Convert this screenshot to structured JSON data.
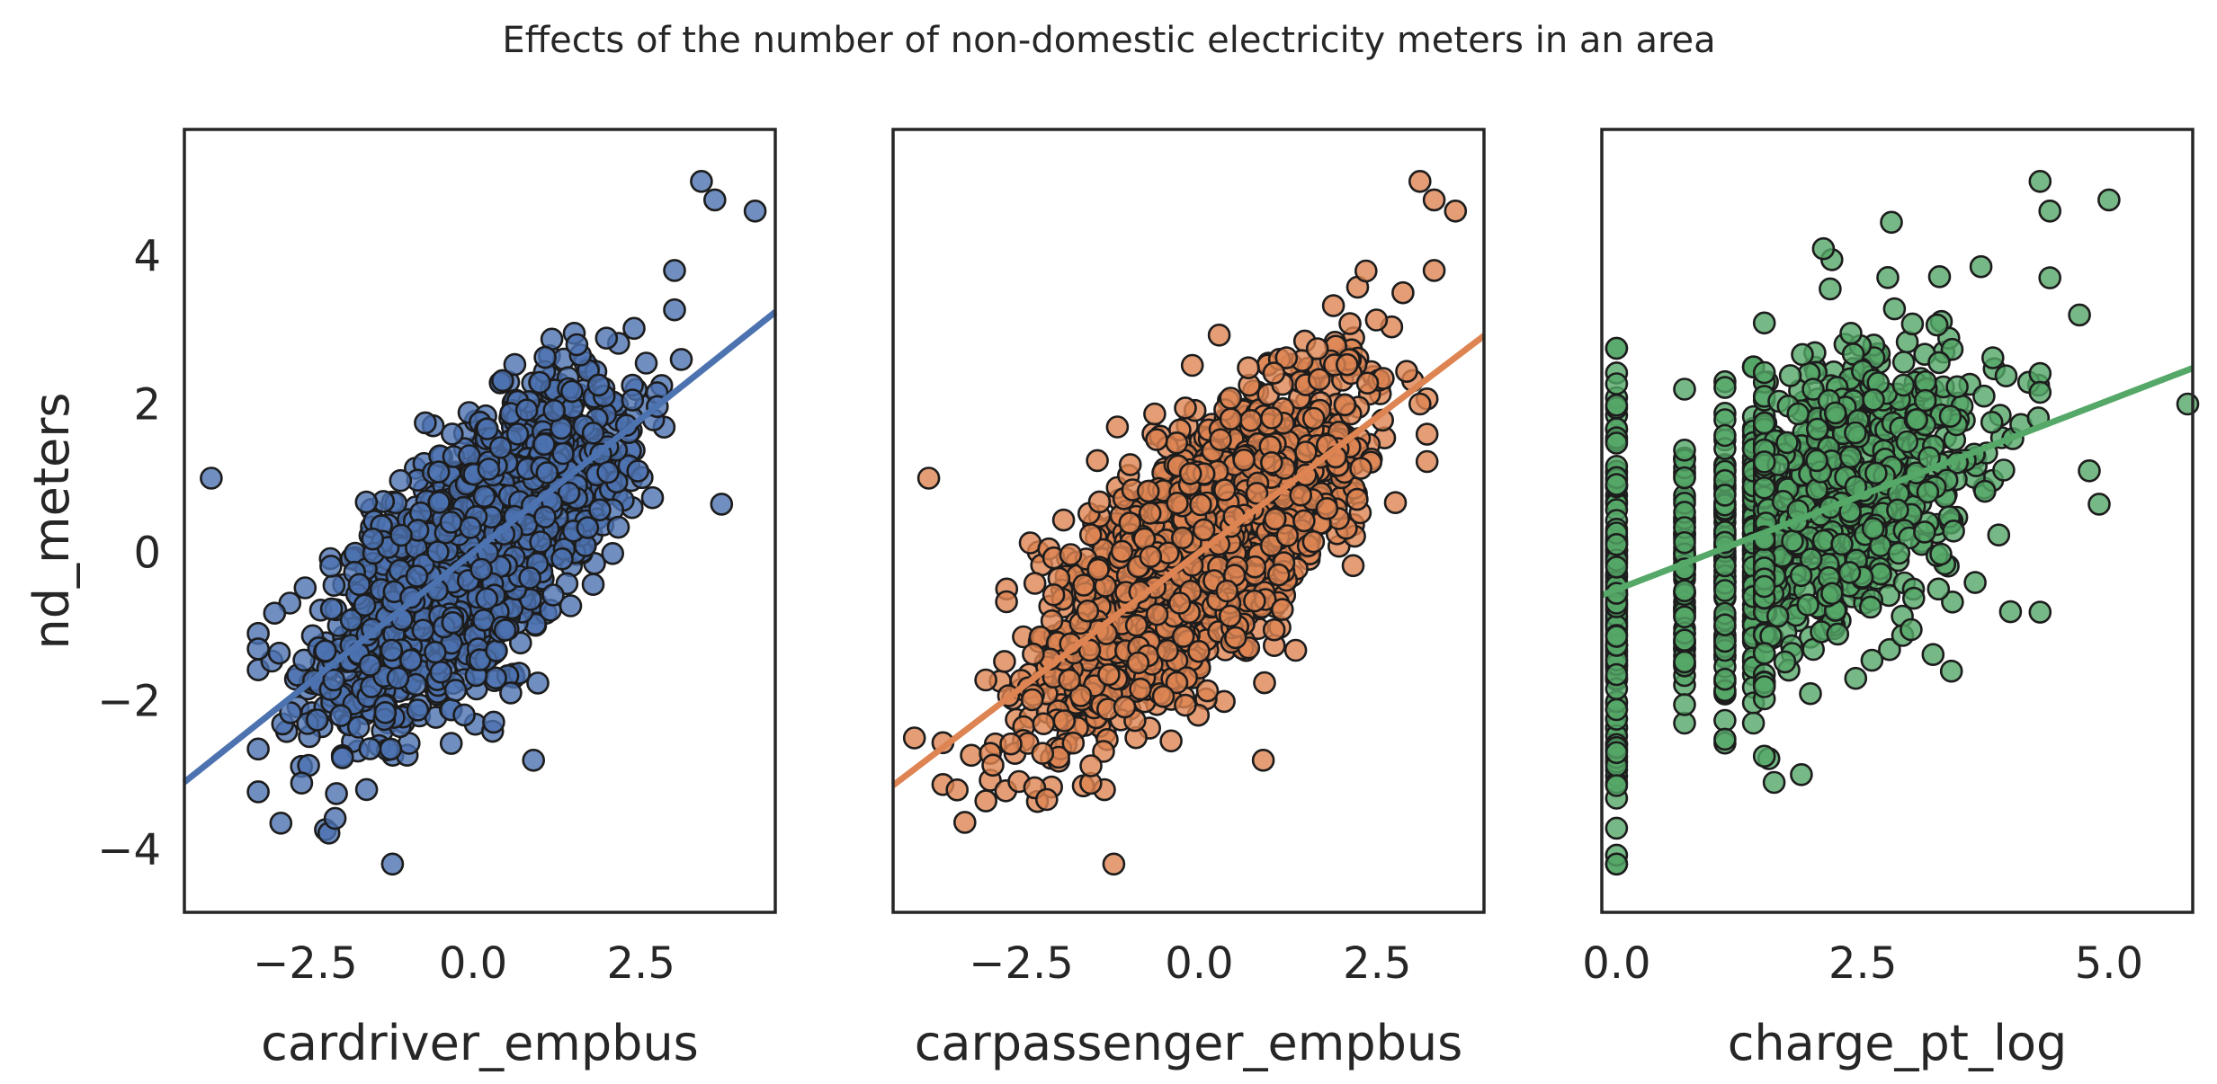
{
  "suptitle": "Effects of the number of non-domestic electricity meters in an area",
  "chart_data": [
    {
      "type": "scatter",
      "xlabel": "cardriver_empbus",
      "ylabel": "nd_meters",
      "xlim": [
        -4.3,
        4.5
      ],
      "ylim": [
        -4.85,
        5.7
      ],
      "xticks": [
        -2.5,
        0.0,
        2.5
      ],
      "xtick_labels": [
        "−2.5",
        "0.0",
        "2.5"
      ],
      "yticks": [
        -4,
        -2,
        0,
        2,
        4
      ],
      "ytick_labels": [
        "−4",
        "−2",
        "0",
        "2",
        "4"
      ],
      "color": "#4c72b0",
      "regression": {
        "slope": 0.72,
        "intercept": 0.0
      },
      "cloud": {
        "x_mean": 0.0,
        "x_sd": 1.1,
        "x_min": -3.2,
        "x_max": 3.0,
        "noise_sd": 0.78,
        "n": 1700
      },
      "outliers": [
        [
          -3.9,
          1.0
        ],
        [
          3.4,
          5.0
        ],
        [
          3.6,
          4.75
        ],
        [
          4.2,
          4.6
        ],
        [
          3.7,
          0.65
        ],
        [
          3.1,
          2.6
        ],
        [
          -1.2,
          -4.2
        ],
        [
          0.9,
          -2.8
        ],
        [
          -3.2,
          -1.3
        ],
        [
          3.0,
          3.8
        ]
      ],
      "grid": false
    },
    {
      "type": "scatter",
      "xlabel": "carpassenger_empbus",
      "ylabel": "",
      "xlim": [
        -4.3,
        4.0
      ],
      "ylim": [
        -4.85,
        5.7
      ],
      "xticks": [
        -2.5,
        0.0,
        2.5
      ],
      "xtick_labels": [
        "−2.5",
        "0.0",
        "2.5"
      ],
      "yticks": [],
      "ytick_labels": [],
      "color": "#dd8452",
      "regression": {
        "slope": 0.73,
        "intercept": 0.0
      },
      "cloud": {
        "x_mean": 0.0,
        "x_sd": 1.1,
        "x_min": -3.6,
        "x_max": 3.2,
        "noise_sd": 0.8,
        "n": 1700
      },
      "outliers": [
        [
          -3.8,
          1.0
        ],
        [
          3.1,
          5.0
        ],
        [
          3.3,
          4.75
        ],
        [
          3.6,
          4.6
        ],
        [
          3.3,
          3.8
        ],
        [
          -4.0,
          -2.5
        ],
        [
          -3.4,
          -3.2
        ],
        [
          -1.2,
          -4.2
        ],
        [
          0.9,
          -2.8
        ],
        [
          3.1,
          2.0
        ]
      ],
      "grid": false
    },
    {
      "type": "scatter",
      "xlabel": "charge_pt_log",
      "ylabel": "",
      "xlim": [
        -0.15,
        5.85
      ],
      "ylim": [
        -4.85,
        5.7
      ],
      "xticks": [
        0.0,
        2.5,
        5.0
      ],
      "xtick_labels": [
        "0.0",
        "2.5",
        "5.0"
      ],
      "yticks": [],
      "ytick_labels": [],
      "color": "#55a868",
      "regression": {
        "slope": 0.51,
        "intercept": -0.5
      },
      "columns": [
        {
          "x": 0.0,
          "ymin": -4.2,
          "ymax": 2.75,
          "n": 140
        },
        {
          "x": 0.69,
          "ymin": -2.5,
          "ymax": 2.2,
          "n": 80
        },
        {
          "x": 1.1,
          "ymin": -2.6,
          "ymax": 2.3,
          "n": 90
        },
        {
          "x": 1.39,
          "ymin": -2.3,
          "ymax": 2.5,
          "n": 90
        }
      ],
      "cloud": {
        "x_mean": 2.3,
        "x_sd": 0.75,
        "x_min": 1.5,
        "x_max": 4.3,
        "noise_sd": 1.05,
        "n": 700
      },
      "outliers": [
        [
          4.3,
          5.0
        ],
        [
          5.0,
          4.75
        ],
        [
          4.4,
          4.6
        ],
        [
          3.7,
          3.85
        ],
        [
          4.4,
          3.7
        ],
        [
          4.7,
          3.2
        ],
        [
          5.8,
          2.0
        ],
        [
          4.9,
          0.65
        ],
        [
          4.8,
          1.1
        ],
        [
          1.6,
          -3.1
        ],
        [
          3.4,
          -1.6
        ],
        [
          4.0,
          -0.8
        ]
      ],
      "grid": false
    }
  ]
}
